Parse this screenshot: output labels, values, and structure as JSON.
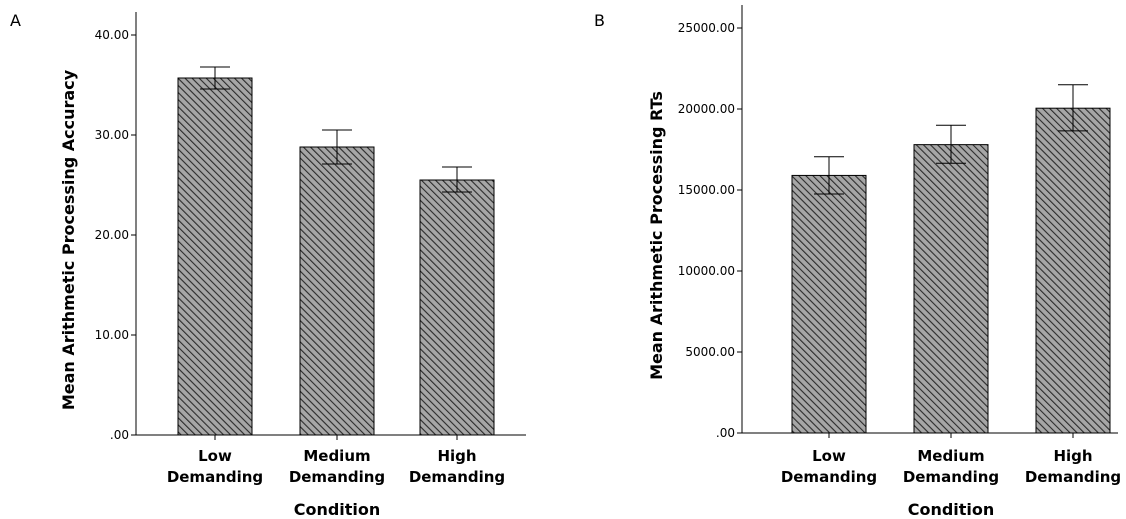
{
  "chart_data": [
    {
      "panel_label": "A",
      "type": "bar",
      "categories": [
        [
          "Low",
          "Demanding"
        ],
        [
          "Medium",
          "Demanding"
        ],
        [
          "High",
          "Demanding"
        ]
      ],
      "values": [
        35.7,
        28.8,
        25.5
      ],
      "error_low": [
        34.6,
        27.1,
        24.3
      ],
      "error_high": [
        36.8,
        30.5,
        26.8
      ],
      "xlabel": "Condition",
      "ylabel": "Mean Arithmetic Processing Accuracy",
      "ylim": [
        0,
        40
      ],
      "yticks": [
        0,
        10,
        20,
        30,
        40
      ],
      "ytick_labels": [
        ".00",
        "10.00",
        "20.00",
        "30.00",
        "40.00"
      ],
      "grid": false,
      "bar_fill": "hatched-gray"
    },
    {
      "panel_label": "B",
      "type": "bar",
      "categories": [
        [
          "Low",
          "Demanding"
        ],
        [
          "Medium",
          "Demanding"
        ],
        [
          "High",
          "Demanding"
        ]
      ],
      "values": [
        15900,
        17800,
        20050
      ],
      "error_low": [
        14750,
        16650,
        18650
      ],
      "error_high": [
        17050,
        19000,
        21500
      ],
      "xlabel": "Condition",
      "ylabel": "Mean Arithmetic Processing RTs",
      "ylim": [
        0,
        25000
      ],
      "yticks": [
        0,
        5000,
        10000,
        15000,
        20000,
        25000
      ],
      "ytick_labels": [
        ".00",
        "5000.00",
        "10000.00",
        "15000.00",
        "20000.00",
        "25000.00"
      ],
      "grid": false,
      "bar_fill": "hatched-gray"
    }
  ]
}
